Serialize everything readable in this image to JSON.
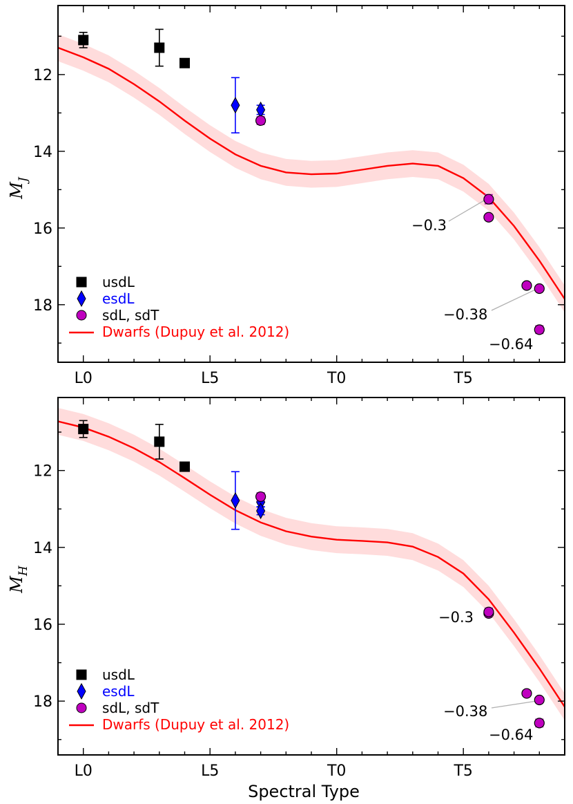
{
  "figure": {
    "xlabel": "Spectral Type"
  },
  "colors": {
    "usdL": "#000000",
    "esdL": "#0000ff",
    "sdL": "#bf00bf",
    "dwarfs": "#ff0000",
    "band": "#ffdcdc"
  },
  "chart_data": [
    {
      "type": "scatter",
      "panel": "top",
      "ylabel_main": "M",
      "ylabel_sub": "J",
      "xlim": [
        -1,
        19
      ],
      "ylim": [
        19.5,
        10.2
      ],
      "xticks": [
        {
          "v": 0,
          "label": "L0"
        },
        {
          "v": 5,
          "label": "L5"
        },
        {
          "v": 10,
          "label": "T0"
        },
        {
          "v": 15,
          "label": "T5"
        }
      ],
      "yticks": [
        {
          "v": 12,
          "label": "12"
        },
        {
          "v": 14,
          "label": "14"
        },
        {
          "v": 16,
          "label": "16"
        },
        {
          "v": 18,
          "label": "18"
        }
      ],
      "legend": {
        "placement": "bottom-left",
        "entries": [
          {
            "series": "usdL",
            "label": "usdL"
          },
          {
            "series": "esdL",
            "label": "esdL"
          },
          {
            "series": "sdL",
            "label": "sdL, sdT"
          },
          {
            "series": "dwarfs",
            "label": "Dwarfs (Dupuy et al. 2012)"
          }
        ]
      },
      "series": [
        {
          "name": "usdL",
          "marker": "square",
          "points": [
            {
              "x": 0,
              "y": 11.1,
              "err": 0.2
            },
            {
              "x": 3,
              "y": 11.3,
              "err": 0.48
            },
            {
              "x": 4,
              "y": 11.7,
              "err": 0
            }
          ]
        },
        {
          "name": "esdL",
          "marker": "diamond",
          "points": [
            {
              "x": 6,
              "y": 12.8,
              "err": 0.72
            },
            {
              "x": 7,
              "y": 12.92,
              "err": 0.12
            }
          ]
        },
        {
          "name": "sdL",
          "marker": "circle",
          "points": [
            {
              "x": 7,
              "y": 13.2,
              "err": 0.1
            },
            {
              "x": 16,
              "y": 15.25,
              "err": 0.12
            },
            {
              "x": 16,
              "y": 15.72,
              "err": 0
            },
            {
              "x": 17.5,
              "y": 17.5,
              "err": 0
            },
            {
              "x": 18,
              "y": 17.58,
              "err": 0
            },
            {
              "x": 18,
              "y": 18.65,
              "err": 0.1
            }
          ]
        }
      ],
      "dwarf_curve": {
        "x": [
          -1,
          0,
          1,
          2,
          3,
          4,
          5,
          6,
          7,
          8,
          9,
          10,
          11,
          12,
          13,
          14,
          15,
          16,
          17,
          18,
          19
        ],
        "y": [
          11.3,
          11.55,
          11.85,
          12.25,
          12.7,
          13.2,
          13.67,
          14.08,
          14.38,
          14.55,
          14.6,
          14.58,
          14.48,
          14.38,
          14.32,
          14.38,
          14.7,
          15.2,
          15.95,
          16.85,
          17.85
        ],
        "band_half_width": 0.35
      },
      "annotations": [
        {
          "text": "−0.3",
          "point_x": 16,
          "point_y": 15.25
        },
        {
          "text": "−0.38",
          "point_x": 18,
          "point_y": 17.58
        },
        {
          "text": "−0.64",
          "point_x": 18,
          "point_y": 18.65
        }
      ]
    },
    {
      "type": "scatter",
      "panel": "bottom",
      "ylabel_main": "M",
      "ylabel_sub": "H",
      "xlim": [
        -1,
        19
      ],
      "ylim": [
        19.4,
        10.1
      ],
      "xticks": [
        {
          "v": 0,
          "label": "L0"
        },
        {
          "v": 5,
          "label": "L5"
        },
        {
          "v": 10,
          "label": "T0"
        },
        {
          "v": 15,
          "label": "T5"
        }
      ],
      "yticks": [
        {
          "v": 12,
          "label": "12"
        },
        {
          "v": 14,
          "label": "14"
        },
        {
          "v": 16,
          "label": "16"
        },
        {
          "v": 18,
          "label": "18"
        }
      ],
      "legend": {
        "placement": "bottom-left",
        "entries": [
          {
            "series": "usdL",
            "label": "usdL"
          },
          {
            "series": "esdL",
            "label": "esdL"
          },
          {
            "series": "sdL",
            "label": "sdL, sdT"
          },
          {
            "series": "dwarfs",
            "label": "Dwarfs (Dupuy et al. 2012)"
          }
        ]
      },
      "series": [
        {
          "name": "usdL",
          "marker": "square",
          "points": [
            {
              "x": 0,
              "y": 10.92,
              "err": 0.22
            },
            {
              "x": 3,
              "y": 11.25,
              "err": 0.45
            },
            {
              "x": 4,
              "y": 11.9,
              "err": 0
            }
          ]
        },
        {
          "name": "esdL",
          "marker": "diamond",
          "points": [
            {
              "x": 6,
              "y": 12.78,
              "err": 0.75
            },
            {
              "x": 7,
              "y": 12.82,
              "err": 0.12
            },
            {
              "x": 7,
              "y": 13.05,
              "err": 0.1
            }
          ]
        },
        {
          "name": "sdL",
          "marker": "circle",
          "points": [
            {
              "x": 7,
              "y": 12.68,
              "err": 0.1
            },
            {
              "x": 16,
              "y": 15.72,
              "err": 0
            },
            {
              "x": 16,
              "y": 15.68,
              "err": 0.1
            },
            {
              "x": 17.5,
              "y": 17.8,
              "err": 0
            },
            {
              "x": 18,
              "y": 17.97,
              "err": 0
            },
            {
              "x": 18,
              "y": 18.57,
              "err": 0.1
            }
          ]
        }
      ],
      "dwarf_curve": {
        "x": [
          -1,
          0,
          1,
          2,
          3,
          4,
          5,
          6,
          7,
          8,
          9,
          10,
          11,
          12,
          13,
          14,
          15,
          16,
          17,
          18,
          19
        ],
        "y": [
          10.72,
          10.88,
          11.12,
          11.42,
          11.78,
          12.2,
          12.63,
          13.03,
          13.35,
          13.58,
          13.72,
          13.8,
          13.83,
          13.87,
          13.98,
          14.25,
          14.68,
          15.35,
          16.22,
          17.15,
          18.15
        ],
        "band_half_width": 0.35
      },
      "annotations": [
        {
          "text": "−0.3",
          "point_x": 16,
          "point_y": 15.7
        },
        {
          "text": "−0.38",
          "point_x": 18,
          "point_y": 17.97
        },
        {
          "text": "−0.64",
          "point_x": 18,
          "point_y": 18.57
        }
      ]
    }
  ]
}
